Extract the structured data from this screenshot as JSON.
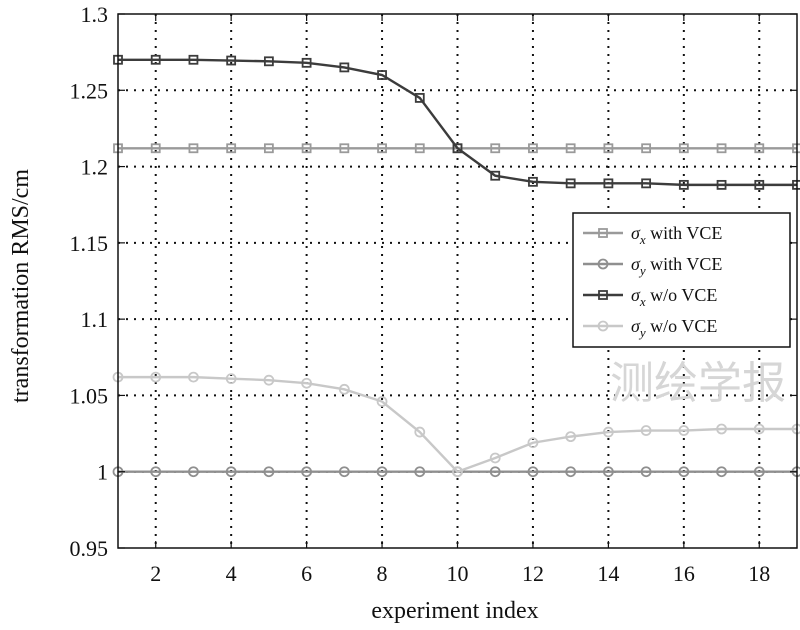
{
  "chart_data": {
    "type": "line",
    "xlabel": "experiment index",
    "ylabel": "transformation RMS/cm",
    "xlim": [
      1,
      19
    ],
    "ylim": [
      0.95,
      1.3
    ],
    "xticks": [
      2,
      4,
      6,
      8,
      10,
      12,
      14,
      16,
      18
    ],
    "yticks": [
      0.95,
      1,
      1.05,
      1.1,
      1.15,
      1.2,
      1.25,
      1.3
    ],
    "ytick_labels": [
      "0.95",
      "1",
      "1.05",
      "1.1",
      "1.15",
      "1.2",
      "1.25",
      "1.3"
    ],
    "grid": true,
    "legend_position": "right-middle",
    "x": [
      1,
      2,
      3,
      4,
      5,
      6,
      7,
      8,
      9,
      10,
      11,
      12,
      13,
      14,
      15,
      16,
      17,
      18,
      19
    ],
    "series": [
      {
        "name": "σx with VCE",
        "symbol": "σ",
        "subscript": "x",
        "suffix": " with VCE",
        "marker": "square",
        "color": "#9a9a9a",
        "values": [
          1.212,
          1.212,
          1.212,
          1.212,
          1.212,
          1.212,
          1.212,
          1.212,
          1.212,
          1.212,
          1.212,
          1.212,
          1.212,
          1.212,
          1.212,
          1.212,
          1.212,
          1.212,
          1.212
        ]
      },
      {
        "name": "σy with VCE",
        "symbol": "σ",
        "subscript": "y",
        "suffix": " with VCE",
        "marker": "circle",
        "color": "#8f8f8f",
        "values": [
          1.0,
          1.0,
          1.0,
          1.0,
          1.0,
          1.0,
          1.0,
          1.0,
          1.0,
          1.0,
          1.0,
          1.0,
          1.0,
          1.0,
          1.0,
          1.0,
          1.0,
          1.0,
          1.0
        ]
      },
      {
        "name": "σx w/o VCE",
        "symbol": "σ",
        "subscript": "x",
        "suffix": " w/o VCE",
        "marker": "square",
        "color": "#3c3c3c",
        "values": [
          1.27,
          1.27,
          1.27,
          1.2695,
          1.269,
          1.268,
          1.265,
          1.26,
          1.245,
          1.212,
          1.194,
          1.19,
          1.189,
          1.189,
          1.189,
          1.188,
          1.188,
          1.188,
          1.188
        ]
      },
      {
        "name": "σy w/o VCE",
        "symbol": "σ",
        "subscript": "y",
        "suffix": " w/o VCE",
        "marker": "circle",
        "color": "#c8c8c8",
        "values": [
          1.062,
          1.062,
          1.062,
          1.061,
          1.06,
          1.058,
          1.054,
          1.046,
          1.026,
          1.0,
          1.009,
          1.019,
          1.023,
          1.026,
          1.027,
          1.027,
          1.028,
          1.028,
          1.028
        ]
      }
    ]
  },
  "watermark": "测绘学报"
}
